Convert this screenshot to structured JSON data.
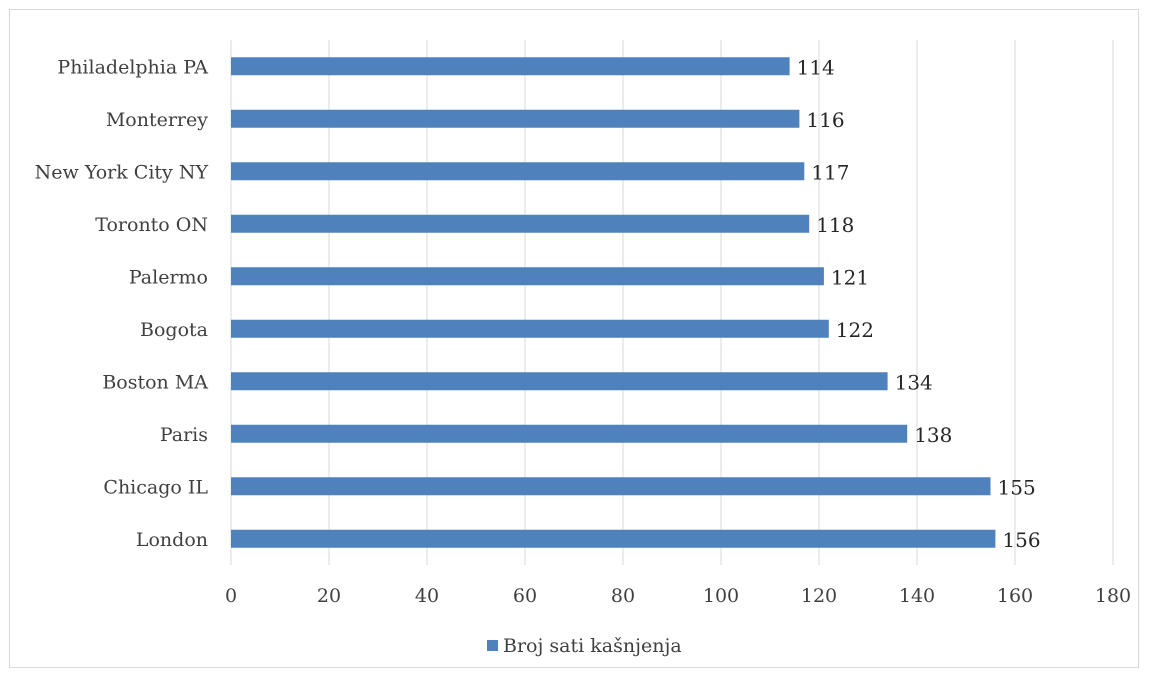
{
  "chart_data": {
    "type": "bar",
    "orientation": "horizontal",
    "categories": [
      "London",
      "Chicago IL",
      "Paris",
      "Boston MA",
      "Bogota",
      "Palermo",
      "Toronto ON",
      "New York City NY",
      "Monterrey",
      "Philadelphia PA"
    ],
    "series": [
      {
        "name": "Broj sati kašnjenja",
        "values": [
          156,
          155,
          138,
          134,
          122,
          121,
          118,
          117,
          116,
          114
        ],
        "color": "#4f81bd"
      }
    ],
    "xlim": [
      0,
      180
    ],
    "xticks": [
      "0",
      "20",
      "40",
      "60",
      "80",
      "100",
      "120",
      "140",
      "160",
      "180"
    ],
    "grid": true,
    "legend": "bottom",
    "title": "",
    "xlabel": "",
    "ylabel": ""
  },
  "colors": {
    "bar": "#4f81bd",
    "grid": "#d9d9d9",
    "text": "#404040"
  }
}
